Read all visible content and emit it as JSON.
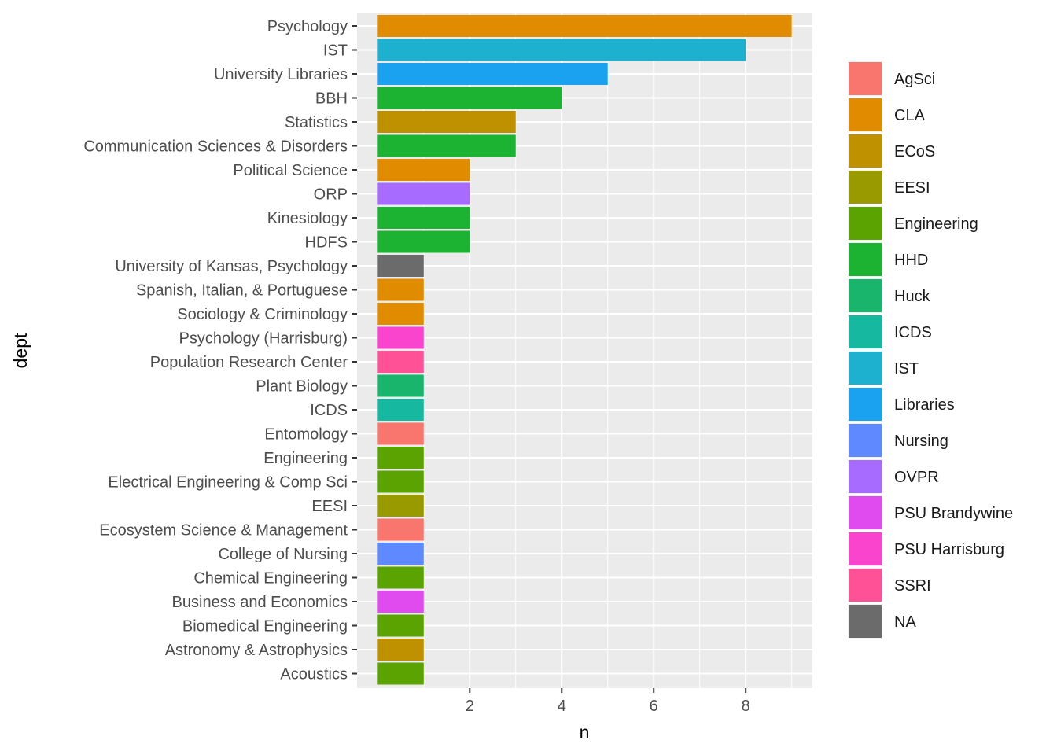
{
  "chart_data": {
    "type": "bar",
    "orientation": "horizontal",
    "xlabel": "n",
    "ylabel": "dept",
    "xlim": [
      -0.45,
      9.45
    ],
    "xticks": [
      2,
      4,
      6,
      8
    ],
    "grid": true,
    "legend_position": "right",
    "categories": [
      "Psychology",
      "IST",
      "University Libraries",
      "BBH",
      "Statistics",
      "Communication Sciences & Disorders",
      "Political Science",
      "ORP",
      "Kinesiology",
      "HDFS",
      "University of Kansas, Psychology",
      "Spanish, Italian, & Portuguese",
      "Sociology & Criminology",
      "Psychology (Harrisburg)",
      "Population Research Center",
      "Plant Biology",
      "ICDS",
      "Entomology",
      "Engineering",
      "Electrical Engineering & Comp Sci",
      "EESI",
      "Ecosystem Science & Management",
      "College of Nursing",
      "Chemical Engineering",
      "Business and Economics",
      "Biomedical Engineering",
      "Astronomy & Astrophysics",
      "Acoustics"
    ],
    "values": [
      9,
      8,
      5,
      4,
      3,
      3,
      2,
      2,
      2,
      2,
      1,
      1,
      1,
      1,
      1,
      1,
      1,
      1,
      1,
      1,
      1,
      1,
      1,
      1,
      1,
      1,
      1,
      1
    ],
    "groups": [
      "CLA",
      "IST",
      "Libraries",
      "HHD",
      "ECoS",
      "HHD",
      "CLA",
      "OVPR",
      "HHD",
      "HHD",
      "NA",
      "CLA",
      "CLA",
      "PSU Harrisburg",
      "SSRI",
      "Huck",
      "ICDS",
      "AgSci",
      "Engineering",
      "Engineering",
      "EESI",
      "AgSci",
      "Nursing",
      "Engineering",
      "PSU Brandywine",
      "Engineering",
      "ECoS",
      "Engineering"
    ],
    "legend": [
      {
        "label": "AgSci",
        "color": "#F8766D"
      },
      {
        "label": "CLA",
        "color": "#E08B00"
      },
      {
        "label": "ECoS",
        "color": "#BF9000"
      },
      {
        "label": "EESI",
        "color": "#999900"
      },
      {
        "label": "Engineering",
        "color": "#5BA300"
      },
      {
        "label": "HHD",
        "color": "#1BB331"
      },
      {
        "label": "Huck",
        "color": "#19B56C"
      },
      {
        "label": "ICDS",
        "color": "#17B8A0"
      },
      {
        "label": "IST",
        "color": "#1DB1CF"
      },
      {
        "label": "Libraries",
        "color": "#1AA1F0"
      },
      {
        "label": "Nursing",
        "color": "#5F8AFF"
      },
      {
        "label": "OVPR",
        "color": "#A86BFF"
      },
      {
        "label": "PSU Brandywine",
        "color": "#E04BF0"
      },
      {
        "label": "PSU Harrisburg",
        "color": "#FA44CE"
      },
      {
        "label": "SSRI",
        "color": "#FF5296"
      },
      {
        "label": "NA",
        "color": "#6B6B6B"
      }
    ]
  }
}
